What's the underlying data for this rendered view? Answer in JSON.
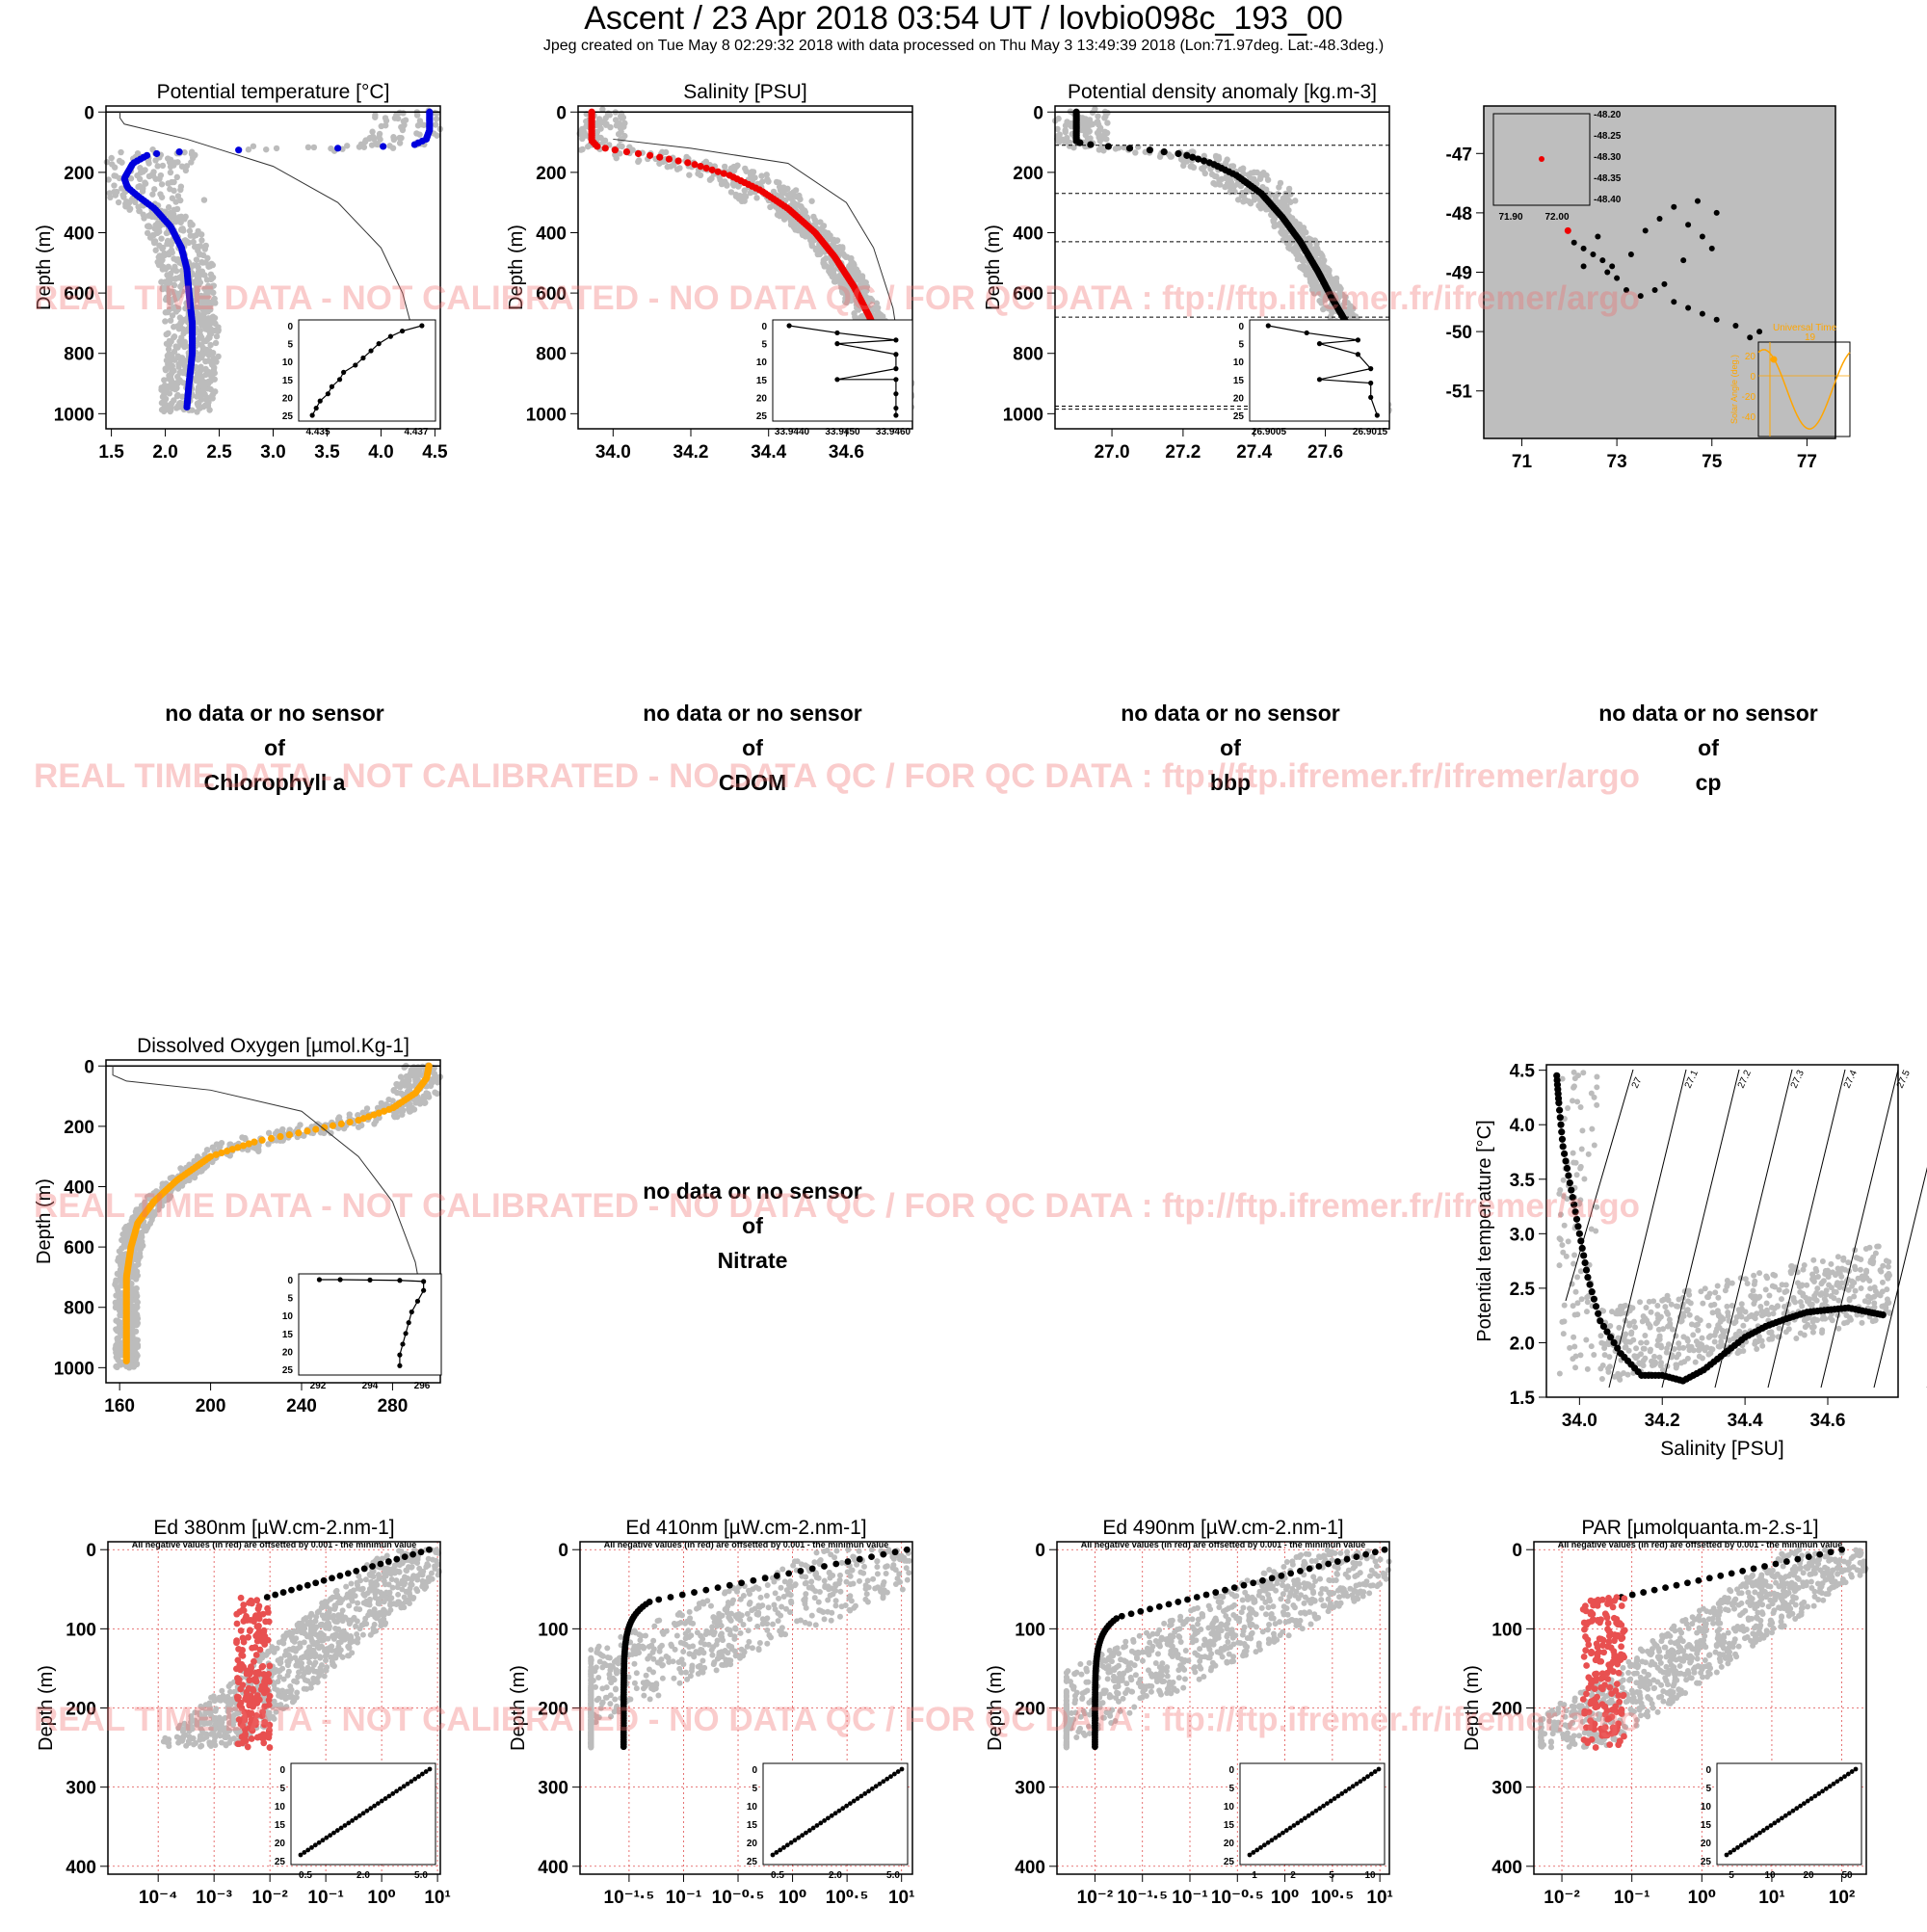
{
  "header": {
    "title": "Ascent / 23 Apr 2018 03:54 UT /  lovbio098c_193_00",
    "subtitle": "Jpeg created on Tue May  8 02:29:32 2018 with data processed on Thu May  3 13:49:39 2018 (Lon:71.97deg. Lat:-48.3deg.)"
  },
  "watermark": "REAL TIME DATA - NOT CALIBRATED - NO DATA QC   /  FOR QC DATA : ftp://ftp.ifremer.fr/ifremer/argo",
  "no_data": {
    "line1": "no data or no sensor",
    "line2": "of",
    "chl": "Chlorophyll a",
    "cdom": "CDOM",
    "bbp": "bbp",
    "cp": "cp",
    "nitrate": "Nitrate"
  },
  "colors": {
    "temperature": "#0000dd",
    "salinity": "#ee0000",
    "density": "#000000",
    "oxygen": "#ffa500",
    "envelope": "#bcbcbc",
    "negative": "#e85050",
    "map_bg": "#bebebe",
    "sun": "#ffa500"
  },
  "chart_data": [
    {
      "id": "temp",
      "type": "scatter",
      "title": "Potential temperature [°C]",
      "ylabel": "Depth (m)",
      "ylim": [
        1050,
        -20
      ],
      "xlim": [
        1.45,
        4.55
      ],
      "xticks": [
        "1.5",
        "2.0",
        "2.5",
        "3.0",
        "3.5",
        "4.0",
        "4.5"
      ],
      "xtick_values": [
        1.5,
        2.0,
        2.5,
        3.0,
        3.5,
        4.0,
        4.5
      ],
      "yticks": [
        "0",
        "200",
        "400",
        "600",
        "800",
        "1000"
      ],
      "ytick_values": [
        0,
        200,
        400,
        600,
        800,
        1000
      ],
      "profile": [
        [
          4.45,
          0
        ],
        [
          4.45,
          60
        ],
        [
          4.42,
          90
        ],
        [
          4.3,
          110
        ],
        [
          3.6,
          120
        ],
        [
          2.8,
          125
        ],
        [
          2.2,
          130
        ],
        [
          1.85,
          140
        ],
        [
          1.7,
          170
        ],
        [
          1.62,
          220
        ],
        [
          1.65,
          250
        ],
        [
          1.75,
          280
        ],
        [
          1.9,
          320
        ],
        [
          2.05,
          380
        ],
        [
          2.15,
          450
        ],
        [
          2.2,
          520
        ],
        [
          2.22,
          600
        ],
        [
          2.25,
          700
        ],
        [
          2.25,
          800
        ],
        [
          2.22,
          900
        ],
        [
          2.2,
          980
        ]
      ],
      "inset": {
        "xticks": [
          "4.435",
          "4.437"
        ],
        "yticks": [
          "0",
          "5",
          "10",
          "15",
          "20",
          "25"
        ],
        "points": [
          [
            4.4373,
            0
          ],
          [
            4.4368,
            1.5
          ],
          [
            4.4365,
            3
          ],
          [
            4.4362,
            5
          ],
          [
            4.436,
            7
          ],
          [
            4.4358,
            9
          ],
          [
            4.4356,
            11
          ],
          [
            4.4353,
            13
          ],
          [
            4.4352,
            15
          ],
          [
            4.435,
            17
          ],
          [
            4.4349,
            19
          ],
          [
            4.4347,
            21
          ],
          [
            4.4346,
            23
          ],
          [
            4.4345,
            25
          ]
        ]
      }
    },
    {
      "id": "sal",
      "type": "scatter",
      "title": "Salinity [PSU]",
      "ylabel": "Depth (m)",
      "ylim": [
        1050,
        -20
      ],
      "xlim": [
        33.91,
        34.77
      ],
      "xticks": [
        "34.0",
        "34.2",
        "34.4",
        "34.6"
      ],
      "xtick_values": [
        34.0,
        34.2,
        34.4,
        34.6
      ],
      "yticks": [
        "0",
        "200",
        "400",
        "600",
        "800",
        "1000"
      ],
      "ytick_values": [
        0,
        200,
        400,
        600,
        800,
        1000
      ],
      "profile": [
        [
          33.945,
          0
        ],
        [
          33.945,
          95
        ],
        [
          33.96,
          115
        ],
        [
          34.0,
          125
        ],
        [
          34.1,
          145
        ],
        [
          34.2,
          170
        ],
        [
          34.3,
          210
        ],
        [
          34.38,
          260
        ],
        [
          34.45,
          320
        ],
        [
          34.52,
          400
        ],
        [
          34.57,
          480
        ],
        [
          34.62,
          580
        ],
        [
          34.66,
          680
        ],
        [
          34.7,
          800
        ],
        [
          34.73,
          900
        ],
        [
          34.745,
          980
        ]
      ],
      "inset": {
        "xticks": [
          "33.9440",
          "33.9450",
          "33.9460"
        ],
        "yticks": [
          "0",
          "5",
          "10",
          "15",
          "20",
          "25"
        ],
        "points": [
          [
            33.944,
            0
          ],
          [
            33.9449,
            2
          ],
          [
            33.946,
            4
          ],
          [
            33.9449,
            5
          ],
          [
            33.946,
            8
          ],
          [
            33.946,
            12
          ],
          [
            33.9449,
            15
          ],
          [
            33.946,
            15
          ],
          [
            33.946,
            19
          ],
          [
            33.946,
            23
          ],
          [
            33.946,
            25
          ]
        ]
      }
    },
    {
      "id": "dens",
      "type": "scatter",
      "title": "Potential density anomaly [kg.m-3]",
      "ylabel": "Depth (m)",
      "ylim": [
        1050,
        -20
      ],
      "xlim": [
        26.84,
        27.78
      ],
      "xticks": [
        "27.0",
        "27.2",
        "27.4",
        "27.6"
      ],
      "xtick_values": [
        27.0,
        27.2,
        27.4,
        27.6
      ],
      "yticks": [
        "0",
        "200",
        "400",
        "600",
        "800",
        "1000"
      ],
      "ytick_values": [
        0,
        200,
        400,
        600,
        800,
        1000
      ],
      "dashed_depths": [
        110,
        270,
        430,
        680,
        975,
        985
      ],
      "profile": [
        [
          26.9,
          0
        ],
        [
          26.9,
          100
        ],
        [
          26.95,
          110
        ],
        [
          27.1,
          125
        ],
        [
          27.2,
          140
        ],
        [
          27.28,
          170
        ],
        [
          27.35,
          210
        ],
        [
          27.42,
          270
        ],
        [
          27.48,
          350
        ],
        [
          27.53,
          430
        ],
        [
          27.58,
          530
        ],
        [
          27.62,
          620
        ],
        [
          27.66,
          700
        ],
        [
          27.7,
          800
        ],
        [
          27.73,
          900
        ],
        [
          27.75,
          980
        ]
      ],
      "inset": {
        "xticks": [
          "26.9005",
          "26.9015"
        ],
        "yticks": [
          "0",
          "5",
          "10",
          "15",
          "20",
          "25"
        ],
        "points": [
          [
            26.9004,
            0
          ],
          [
            26.901,
            2
          ],
          [
            26.9018,
            4
          ],
          [
            26.9012,
            5
          ],
          [
            26.9018,
            8
          ],
          [
            26.902,
            12
          ],
          [
            26.9012,
            15
          ],
          [
            26.902,
            16
          ],
          [
            26.902,
            20
          ],
          [
            26.9021,
            25
          ]
        ]
      }
    },
    {
      "id": "map",
      "type": "scatter",
      "title": "",
      "xlim": [
        70.2,
        77.6
      ],
      "ylim": [
        -51.8,
        -46.2
      ],
      "xticks": [
        "71",
        "73",
        "75",
        "77"
      ],
      "xtick_values": [
        71,
        73,
        75,
        77
      ],
      "yticks": [
        "-47",
        "-48",
        "-49",
        "-50",
        "-51"
      ],
      "ytick_values": [
        -47,
        -48,
        -49,
        -50,
        -51
      ],
      "current": [
        71.97,
        -48.3
      ],
      "track": [
        [
          72.1,
          -48.5
        ],
        [
          72.3,
          -48.6
        ],
        [
          72.5,
          -48.7
        ],
        [
          72.3,
          -48.9
        ],
        [
          72.7,
          -48.8
        ],
        [
          72.9,
          -48.9
        ],
        [
          73.0,
          -49.1
        ],
        [
          73.2,
          -49.3
        ],
        [
          73.5,
          -49.4
        ],
        [
          73.8,
          -49.3
        ],
        [
          74.0,
          -49.2
        ],
        [
          74.2,
          -49.5
        ],
        [
          74.5,
          -49.6
        ],
        [
          74.8,
          -49.7
        ],
        [
          75.1,
          -49.8
        ],
        [
          75.5,
          -49.9
        ],
        [
          75.8,
          -50.1
        ],
        [
          76.0,
          -50.0
        ],
        [
          74.2,
          -47.9
        ],
        [
          74.5,
          -48.2
        ],
        [
          74.8,
          -48.4
        ],
        [
          75.0,
          -48.6
        ],
        [
          75.1,
          -48.0
        ],
        [
          74.7,
          -47.8
        ],
        [
          74.4,
          -48.8
        ],
        [
          73.9,
          -48.1
        ],
        [
          73.6,
          -48.3
        ],
        [
          73.3,
          -48.7
        ],
        [
          72.8,
          -49.0
        ],
        [
          72.6,
          -48.4
        ]
      ],
      "inset": {
        "xticks": [
          "71.90",
          "72.00"
        ],
        "yticks": [
          "-48.20",
          "-48.25",
          "-48.30",
          "-48.35",
          "-48.40"
        ]
      },
      "sun": {
        "label": "Universal Time",
        "hour": "19",
        "ylabel": "Solar Angle (deg.)",
        "yticks": [
          "20",
          "0",
          "-20",
          "-40"
        ]
      }
    },
    {
      "id": "oxy",
      "type": "scatter",
      "title": "Dissolved Oxygen [µmol.Kg-1]",
      "ylabel": "Depth (m)",
      "ylim": [
        1050,
        -20
      ],
      "xlim": [
        154,
        301
      ],
      "xticks": [
        "160",
        "200",
        "240",
        "280"
      ],
      "xtick_values": [
        160,
        200,
        240,
        280
      ],
      "yticks": [
        "0",
        "200",
        "400",
        "600",
        "800",
        "1000"
      ],
      "ytick_values": [
        0,
        200,
        400,
        600,
        800,
        1000
      ],
      "profile": [
        [
          296,
          0
        ],
        [
          295,
          40
        ],
        [
          290,
          90
        ],
        [
          280,
          140
        ],
        [
          265,
          180
        ],
        [
          240,
          220
        ],
        [
          220,
          250
        ],
        [
          200,
          300
        ],
        [
          185,
          380
        ],
        [
          175,
          450
        ],
        [
          168,
          520
        ],
        [
          165,
          600
        ],
        [
          163,
          700
        ],
        [
          163,
          800
        ],
        [
          163,
          900
        ],
        [
          163,
          980
        ]
      ],
      "inset": {
        "xticks": [
          "292",
          "294",
          "296"
        ],
        "yticks": [
          "0",
          "5",
          "10",
          "15",
          "20",
          "25"
        ],
        "points": [
          [
            292.3,
            0
          ],
          [
            293,
            0
          ],
          [
            294,
            0.1
          ],
          [
            295,
            0.2
          ],
          [
            295.8,
            0.5
          ],
          [
            295.8,
            3
          ],
          [
            295.6,
            6
          ],
          [
            295.4,
            9
          ],
          [
            295.3,
            12
          ],
          [
            295.2,
            15
          ],
          [
            295.1,
            18
          ],
          [
            295.0,
            21
          ],
          [
            295.0,
            24
          ]
        ]
      }
    },
    {
      "id": "ts",
      "type": "scatter",
      "title": "",
      "xlabel": "Salinity [PSU]",
      "ylabel": "Potential temperature [°C]",
      "xlim": [
        33.92,
        34.77
      ],
      "ylim": [
        1.5,
        4.55
      ],
      "xticks": [
        "34.0",
        "34.2",
        "34.4",
        "34.6"
      ],
      "xtick_values": [
        34.0,
        34.2,
        34.4,
        34.6
      ],
      "yticks": [
        "1.5",
        "2.0",
        "2.5",
        "3.0",
        "3.5",
        "4.0",
        "4.5"
      ],
      "ytick_values": [
        1.5,
        2.0,
        2.5,
        3.0,
        3.5,
        4.0,
        4.5
      ],
      "isopycnals": [
        "27",
        "27.1",
        "27.2",
        "27.3",
        "27.4",
        "27.5",
        "27.6",
        "27.7"
      ],
      "profile": [
        [
          33.945,
          4.45
        ],
        [
          33.95,
          4.2
        ],
        [
          33.96,
          3.8
        ],
        [
          33.98,
          3.4
        ],
        [
          34.0,
          3.0
        ],
        [
          34.02,
          2.6
        ],
        [
          34.05,
          2.2
        ],
        [
          34.1,
          1.9
        ],
        [
          34.15,
          1.7
        ],
        [
          34.2,
          1.7
        ],
        [
          34.25,
          1.65
        ],
        [
          34.3,
          1.75
        ],
        [
          34.35,
          1.9
        ],
        [
          34.4,
          2.05
        ],
        [
          34.45,
          2.15
        ],
        [
          34.5,
          2.22
        ],
        [
          34.55,
          2.28
        ],
        [
          34.6,
          2.3
        ],
        [
          34.65,
          2.32
        ],
        [
          34.7,
          2.28
        ],
        [
          34.74,
          2.25
        ]
      ]
    },
    {
      "id": "ed380",
      "type": "scatter",
      "title": "Ed 380nm [µW.cm-2.nm-1]",
      "note": "All negative values (in red) are offsetted by 0.001 - the minimun value",
      "ylabel": "Depth (m)",
      "ylim": [
        410,
        -10
      ],
      "log_x": true,
      "xlim_log": [
        -4.9,
        1.05
      ],
      "xticks": [
        "10-4",
        "10-3",
        "10-2",
        "10-1",
        "100",
        "101"
      ],
      "xtick_values": [
        -4,
        -3,
        -2,
        -1,
        0,
        1
      ],
      "yticks": [
        "0",
        "100",
        "200",
        "300",
        "400"
      ],
      "ytick_values": [
        0,
        100,
        200,
        300,
        400
      ],
      "inset": {
        "xticks": [
          "0.5",
          "2.0",
          "5.0"
        ],
        "yticks": [
          "0",
          "5",
          "10",
          "15",
          "20",
          "25"
        ]
      }
    },
    {
      "id": "ed410",
      "type": "scatter",
      "title": "Ed 410nm [µW.cm-2.nm-1]",
      "note": "All negative values (in red) are offsetted by 0.001 - the minimun value",
      "ylabel": "Depth (m)",
      "ylim": [
        410,
        -10
      ],
      "log_x": true,
      "xlim_log": [
        -1.95,
        1.1
      ],
      "xticks": [
        "10-1.5",
        "10-1",
        "10-0.5",
        "100",
        "100.5",
        "101"
      ],
      "xtick_values": [
        -1.5,
        -1,
        -0.5,
        0,
        0.5,
        1
      ],
      "yticks": [
        "0",
        "100",
        "200",
        "300",
        "400"
      ],
      "ytick_values": [
        0,
        100,
        200,
        300,
        400
      ],
      "inset": {
        "xticks": [
          "0.5",
          "2.0",
          "5.0"
        ],
        "yticks": [
          "0",
          "5",
          "10",
          "15",
          "20",
          "25"
        ]
      }
    },
    {
      "id": "ed490",
      "type": "scatter",
      "title": "Ed 490nm [µW.cm-2.nm-1]",
      "note": "All negative values (in red) are offsetted by 0.001 - the minimun value",
      "ylabel": "Depth (m)",
      "ylim": [
        410,
        -10
      ],
      "log_x": true,
      "xlim_log": [
        -2.4,
        1.1
      ],
      "xticks": [
        "10-2",
        "10-1.5",
        "10-1",
        "10-0.5",
        "100",
        "100.5",
        "101"
      ],
      "xtick_values": [
        -2,
        -1.5,
        -1,
        -0.5,
        0,
        0.5,
        1
      ],
      "yticks": [
        "0",
        "100",
        "200",
        "300",
        "400"
      ],
      "ytick_values": [
        0,
        100,
        200,
        300,
        400
      ],
      "inset": {
        "xticks": [
          "1",
          "2",
          "5",
          "10"
        ],
        "yticks": [
          "0",
          "5",
          "10",
          "15",
          "20",
          "25"
        ]
      }
    },
    {
      "id": "par",
      "type": "scatter",
      "title": "PAR [µmolquanta.m-2.s-1]",
      "note": "All negative values (in red) are offsetted by 0.001 - the minimun value",
      "ylabel": "Depth (m)",
      "ylim": [
        410,
        -10
      ],
      "log_x": true,
      "xlim_log": [
        -2.4,
        2.35
      ],
      "xticks": [
        "10-2",
        "10-1",
        "100",
        "101",
        "102"
      ],
      "xtick_values": [
        -2,
        -1,
        0,
        1,
        2
      ],
      "yticks": [
        "0",
        "100",
        "200",
        "300",
        "400"
      ],
      "ytick_values": [
        0,
        100,
        200,
        300,
        400
      ],
      "inset": {
        "xticks": [
          "5",
          "10",
          "20",
          "50"
        ],
        "yticks": [
          "0",
          "5",
          "10",
          "15",
          "20",
          "25"
        ]
      }
    }
  ]
}
